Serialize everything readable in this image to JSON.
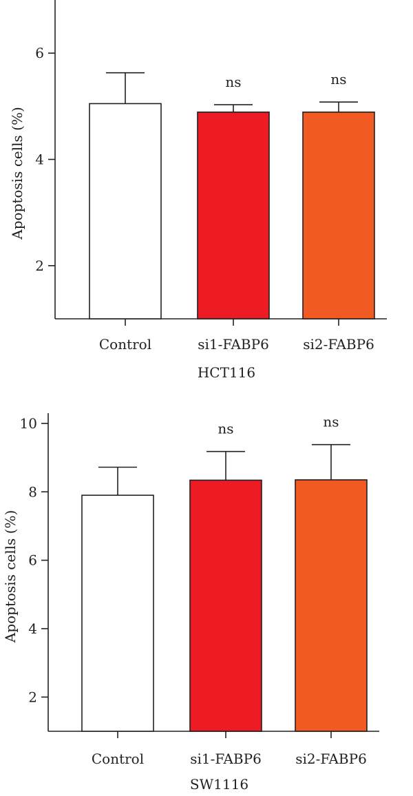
{
  "chart_data": [
    {
      "type": "bar",
      "title": "",
      "xlabel": "HCT116",
      "ylabel": "Apoptosis cells (%)",
      "ylim": [
        1,
        7.0
      ],
      "yticks": [
        2,
        4,
        6
      ],
      "categories": [
        "Control",
        "si1-FABP6",
        "si2-FABP6"
      ],
      "values": [
        5.05,
        4.89,
        4.89
      ],
      "errors": [
        0.58,
        0.14,
        0.19
      ],
      "significance": [
        "",
        "ns",
        "ns"
      ],
      "colors": [
        "#ffffff",
        "#ed1c24",
        "#f15a22"
      ],
      "grid": false
    },
    {
      "type": "bar",
      "title": "",
      "xlabel": "SW1116",
      "ylabel": "Apoptosis cells (%)",
      "ylim": [
        1,
        10.3
      ],
      "yticks": [
        2,
        4,
        6,
        8,
        10
      ],
      "categories": [
        "Control",
        "si1-FABP6",
        "si2-FABP6"
      ],
      "values": [
        7.9,
        8.34,
        8.35
      ],
      "errors": [
        0.82,
        0.84,
        1.03
      ],
      "significance": [
        "",
        "ns",
        "ns"
      ],
      "colors": [
        "#ffffff",
        "#ed1c24",
        "#f15a22"
      ],
      "grid": false
    }
  ]
}
